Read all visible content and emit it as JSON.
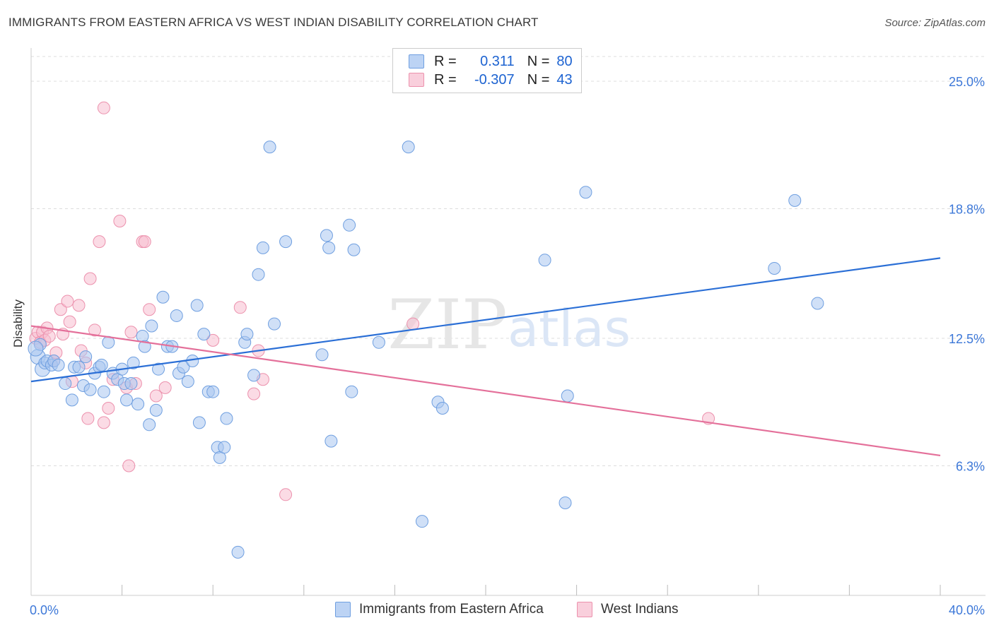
{
  "header": {
    "title": "IMMIGRANTS FROM EASTERN AFRICA VS WEST INDIAN DISABILITY CORRELATION CHART",
    "source": "Source: ZipAtlas.com"
  },
  "watermark": {
    "zip": "ZIP",
    "atlas": "atlas"
  },
  "legend": {
    "series1": {
      "r_label": "R =",
      "r_value": "0.311",
      "n_label": "N =",
      "n_value": "80"
    },
    "series2": {
      "r_label": "R =",
      "r_value": "-0.307",
      "n_label": "N =",
      "n_value": "43"
    }
  },
  "colors": {
    "blue_fill": "#a9c7f0",
    "blue_stroke": "#6f9fe0",
    "blue_line": "#2b6fd6",
    "pink_fill": "#f7bed0",
    "pink_stroke": "#ec91ad",
    "pink_line": "#e4709a",
    "axis_text": "#3d78d8",
    "grid": "#dddddd"
  },
  "chart_data": {
    "type": "scatter",
    "title": "IMMIGRANTS FROM EASTERN AFRICA VS WEST INDIAN DISABILITY CORRELATION CHART",
    "xlabel": "",
    "ylabel": "Disability",
    "xlim": [
      0,
      40
    ],
    "ylim": [
      0,
      26.2
    ],
    "x_tick_labels": [
      "0.0%",
      "40.0%"
    ],
    "y_ticks": [
      6.3,
      12.5,
      18.8,
      25.0
    ],
    "y_tick_labels": [
      "6.3%",
      "12.5%",
      "18.8%",
      "25.0%"
    ],
    "legend_position": "top-center",
    "series": [
      {
        "name": "Immigrants from Eastern Africa",
        "color": "#a9c7f0",
        "trendline": {
          "x": [
            0,
            40
          ],
          "y": [
            10.4,
            16.4
          ]
        },
        "points": [
          [
            0.3,
            11.6
          ],
          [
            0.4,
            12.2
          ],
          [
            0.5,
            11.0
          ],
          [
            0.6,
            11.3
          ],
          [
            0.7,
            11.4
          ],
          [
            0.9,
            11.2
          ],
          [
            1.0,
            11.4
          ],
          [
            1.2,
            11.2
          ],
          [
            1.5,
            10.3
          ],
          [
            1.8,
            9.5
          ],
          [
            1.9,
            11.1
          ],
          [
            2.1,
            11.1
          ],
          [
            2.3,
            10.2
          ],
          [
            2.4,
            11.6
          ],
          [
            2.6,
            10.0
          ],
          [
            2.8,
            10.8
          ],
          [
            3.0,
            11.1
          ],
          [
            3.1,
            11.2
          ],
          [
            3.2,
            9.9
          ],
          [
            3.4,
            12.3
          ],
          [
            3.6,
            10.8
          ],
          [
            3.8,
            10.5
          ],
          [
            4.0,
            11.0
          ],
          [
            4.1,
            10.3
          ],
          [
            4.2,
            9.5
          ],
          [
            4.4,
            10.3
          ],
          [
            4.5,
            11.3
          ],
          [
            4.7,
            9.3
          ],
          [
            4.9,
            12.6
          ],
          [
            5.0,
            12.1
          ],
          [
            5.2,
            8.3
          ],
          [
            5.3,
            13.1
          ],
          [
            5.5,
            9.0
          ],
          [
            5.6,
            11.0
          ],
          [
            5.8,
            14.5
          ],
          [
            6.0,
            12.1
          ],
          [
            6.2,
            12.1
          ],
          [
            6.4,
            13.6
          ],
          [
            6.5,
            10.8
          ],
          [
            6.7,
            11.1
          ],
          [
            6.9,
            10.4
          ],
          [
            7.1,
            11.4
          ],
          [
            7.3,
            14.1
          ],
          [
            7.4,
            8.4
          ],
          [
            7.6,
            12.7
          ],
          [
            7.8,
            9.9
          ],
          [
            8.0,
            9.9
          ],
          [
            8.2,
            7.2
          ],
          [
            8.3,
            6.7
          ],
          [
            8.5,
            7.2
          ],
          [
            8.6,
            8.6
          ],
          [
            9.1,
            2.1
          ],
          [
            9.4,
            12.3
          ],
          [
            9.5,
            12.7
          ],
          [
            9.8,
            10.7
          ],
          [
            10.0,
            15.6
          ],
          [
            10.2,
            16.9
          ],
          [
            10.5,
            21.8
          ],
          [
            10.7,
            13.2
          ],
          [
            11.2,
            17.2
          ],
          [
            12.8,
            11.7
          ],
          [
            13.0,
            17.5
          ],
          [
            13.1,
            16.9
          ],
          [
            13.2,
            7.5
          ],
          [
            14.0,
            18.0
          ],
          [
            14.1,
            9.9
          ],
          [
            14.2,
            16.8
          ],
          [
            15.3,
            12.3
          ],
          [
            17.2,
            3.6
          ],
          [
            16.6,
            21.8
          ],
          [
            17.9,
            9.4
          ],
          [
            18.1,
            9.1
          ],
          [
            22.6,
            16.3
          ],
          [
            23.5,
            4.5
          ],
          [
            23.6,
            9.7
          ],
          [
            24.4,
            19.6
          ],
          [
            32.7,
            15.9
          ],
          [
            33.6,
            19.2
          ],
          [
            34.6,
            14.2
          ],
          [
            0.2,
            12.0
          ]
        ]
      },
      {
        "name": "West Indians",
        "color": "#f7bed0",
        "trendline": {
          "x": [
            0,
            40
          ],
          "y": [
            13.1,
            6.8
          ]
        },
        "points": [
          [
            0.2,
            12.5
          ],
          [
            0.3,
            12.8
          ],
          [
            0.4,
            12.3
          ],
          [
            0.5,
            12.8
          ],
          [
            0.6,
            12.4
          ],
          [
            0.7,
            13.0
          ],
          [
            0.8,
            12.6
          ],
          [
            1.0,
            11.4
          ],
          [
            1.1,
            11.8
          ],
          [
            1.3,
            13.9
          ],
          [
            1.4,
            12.7
          ],
          [
            1.6,
            14.3
          ],
          [
            1.7,
            13.3
          ],
          [
            1.8,
            10.4
          ],
          [
            2.1,
            14.1
          ],
          [
            2.2,
            11.9
          ],
          [
            2.4,
            11.3
          ],
          [
            2.5,
            8.6
          ],
          [
            2.6,
            15.4
          ],
          [
            2.8,
            12.9
          ],
          [
            3.0,
            17.2
          ],
          [
            3.2,
            8.4
          ],
          [
            3.4,
            9.1
          ],
          [
            3.6,
            10.5
          ],
          [
            3.2,
            23.7
          ],
          [
            3.9,
            18.2
          ],
          [
            4.2,
            10.1
          ],
          [
            4.3,
            6.3
          ],
          [
            4.4,
            12.8
          ],
          [
            4.6,
            10.3
          ],
          [
            4.9,
            17.2
          ],
          [
            5.0,
            17.2
          ],
          [
            5.2,
            13.9
          ],
          [
            5.5,
            9.7
          ],
          [
            5.9,
            10.1
          ],
          [
            8.0,
            12.4
          ],
          [
            9.2,
            14.0
          ],
          [
            9.8,
            9.8
          ],
          [
            10.0,
            11.9
          ],
          [
            10.2,
            10.5
          ],
          [
            11.2,
            4.9
          ],
          [
            16.8,
            13.2
          ],
          [
            29.8,
            8.6
          ]
        ]
      }
    ]
  },
  "bottom_legend": {
    "series1": "Immigrants from Eastern Africa",
    "series2": "West Indians"
  }
}
